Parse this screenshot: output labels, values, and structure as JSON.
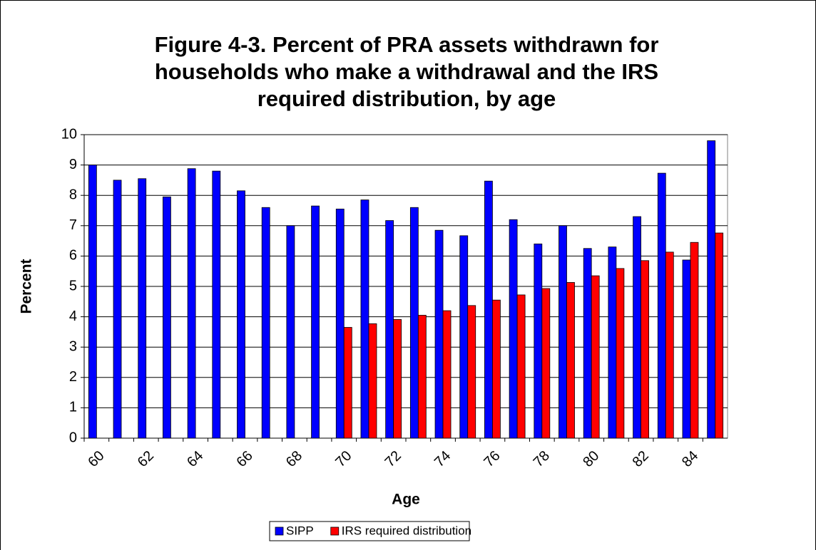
{
  "chart_data": {
    "type": "bar",
    "title": "Figure 4-3. Percent of PRA assets withdrawn for households who make a withdrawal and the IRS required distribution, by age",
    "x_label": "Age",
    "y_label": "Percent",
    "categories": [
      "60",
      null,
      "62",
      null,
      "64",
      null,
      "66",
      null,
      "68",
      null,
      "70",
      null,
      "72",
      null,
      "74",
      null,
      "76",
      null,
      "78",
      null,
      "80",
      null,
      "82",
      null,
      "84",
      null
    ],
    "series": [
      {
        "name": "SIPP",
        "color": "#0000ff",
        "values": [
          9.0,
          8.5,
          8.55,
          7.95,
          8.88,
          8.8,
          8.15,
          7.6,
          7.0,
          7.65,
          7.55,
          7.85,
          7.17,
          7.6,
          6.85,
          6.67,
          8.47,
          7.2,
          6.4,
          7.0,
          6.25,
          6.3,
          7.3,
          8.73,
          5.87,
          9.8
        ]
      },
      {
        "name": "IRS required distribution",
        "color": "#ff0000",
        "values": [
          null,
          null,
          null,
          null,
          null,
          null,
          null,
          null,
          null,
          null,
          3.65,
          3.77,
          3.91,
          4.05,
          4.2,
          4.37,
          4.55,
          4.72,
          4.93,
          5.13,
          5.35,
          5.59,
          5.85,
          6.13,
          6.45,
          6.76
        ]
      }
    ],
    "ylim": [
      0,
      10
    ],
    "yticks": [
      0,
      1,
      2,
      3,
      4,
      5,
      6,
      7,
      8,
      9,
      10
    ],
    "grid": true,
    "legend": "bottom"
  }
}
